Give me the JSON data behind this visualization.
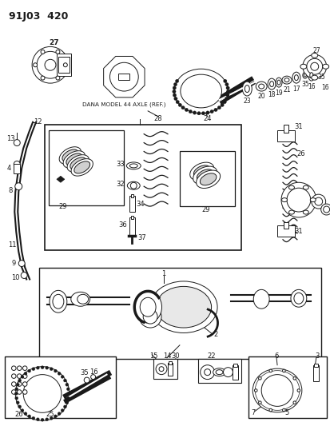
{
  "title": "91J03  420",
  "bg": "#ffffff",
  "fg": "#1a1a1a",
  "figsize": [
    4.14,
    5.33
  ],
  "dpi": 100,
  "dana_label": "DANA MODEL 44 AXLE (REF.)"
}
